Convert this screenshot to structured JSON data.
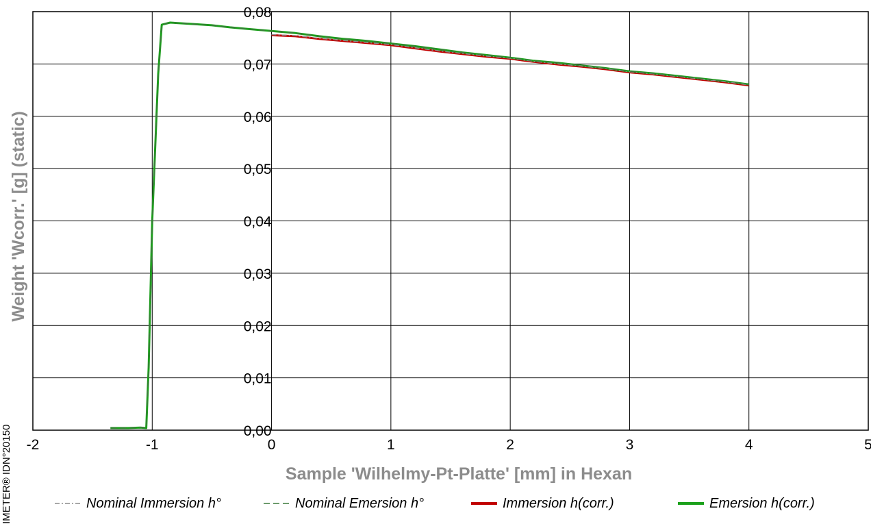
{
  "chart_data": {
    "type": "line",
    "title": "",
    "xlabel": "Sample 'Wilhelmy-Pt-Platte' [mm] in Hexan",
    "ylabel": "Weight 'Wcorr.' [g]  (static)",
    "side_note": "IMETER® IDN°20150",
    "xlim": [
      -2,
      5
    ],
    "ylim": [
      0,
      0.08
    ],
    "x_ticks": [
      -2,
      -1,
      0,
      1,
      2,
      3,
      4,
      5
    ],
    "x_tick_labels": [
      "-2",
      "-1",
      "0",
      "1",
      "2",
      "3",
      "4",
      "5"
    ],
    "y_ticks": [
      0,
      0.01,
      0.02,
      0.03,
      0.04,
      0.05,
      0.06,
      0.07,
      0.08
    ],
    "y_tick_labels": [
      "0,00",
      "0,01",
      "0,02",
      "0,03",
      "0,04",
      "0,05",
      "0,06",
      "0,07",
      "0,08"
    ],
    "grid": true,
    "legend_position": "bottom",
    "series": [
      {
        "name": "Nominal Immersion h°",
        "color": "#8c8c8c",
        "style": "dash-dot",
        "x": [
          0,
          0.2,
          0.4,
          0.6,
          0.8,
          1.0,
          1.2,
          1.4,
          1.6,
          1.8,
          2.0,
          2.2,
          2.4,
          2.6,
          2.8,
          3.0,
          3.2,
          3.4,
          3.6,
          3.8,
          4.0
        ],
        "y": [
          0.0756,
          0.0754,
          0.0749,
          0.0745,
          0.0741,
          0.0737,
          0.0731,
          0.0725,
          0.072,
          0.0715,
          0.0711,
          0.0705,
          0.07,
          0.0696,
          0.0691,
          0.0685,
          0.0681,
          0.0676,
          0.0671,
          0.0666,
          0.066
        ]
      },
      {
        "name": "Nominal Emersion h°",
        "color": "#3c7a3c",
        "style": "dash",
        "x": [
          -1.35,
          -1.3,
          -1.2,
          -1.1,
          -1.05,
          -1.03,
          -1.0,
          -0.95,
          -0.92,
          -0.85,
          -0.7,
          -0.5,
          -0.35,
          -0.2,
          0,
          0.2,
          0.4,
          0.6,
          0.8,
          1.0,
          1.2,
          1.4,
          1.6,
          1.8,
          2.0,
          2.2,
          2.4,
          2.6,
          2.8,
          3.0,
          3.2,
          3.4,
          3.6,
          3.8,
          4.0
        ],
        "y": [
          0.0004,
          0.0004,
          0.0004,
          0.0005,
          0.0004,
          0.012,
          0.04,
          0.068,
          0.0775,
          0.0779,
          0.0777,
          0.0774,
          0.077,
          0.0767,
          0.0763,
          0.0759,
          0.0753,
          0.0748,
          0.0744,
          0.0739,
          0.0734,
          0.0728,
          0.0722,
          0.0717,
          0.0712,
          0.0706,
          0.0702,
          0.0697,
          0.0692,
          0.0686,
          0.0682,
          0.0677,
          0.0672,
          0.0667,
          0.0661
        ]
      },
      {
        "name": "Immersion h(corr.)",
        "color": "#c00000",
        "style": "solid",
        "x": [
          0,
          0.2,
          0.4,
          0.6,
          0.8,
          1.0,
          1.2,
          1.4,
          1.6,
          1.8,
          2.0,
          2.2,
          2.4,
          2.6,
          2.8,
          3.0,
          3.2,
          3.4,
          3.6,
          3.8,
          4.0
        ],
        "y": [
          0.0755,
          0.0753,
          0.0748,
          0.0744,
          0.074,
          0.0736,
          0.073,
          0.0724,
          0.0719,
          0.0714,
          0.071,
          0.0704,
          0.0699,
          0.0695,
          0.069,
          0.0684,
          0.068,
          0.0675,
          0.067,
          0.0665,
          0.0659
        ]
      },
      {
        "name": "Emersion h(corr.)",
        "color": "#1aa01a",
        "style": "solid",
        "x": [
          -1.35,
          -1.3,
          -1.2,
          -1.1,
          -1.05,
          -1.03,
          -1.0,
          -0.95,
          -0.92,
          -0.85,
          -0.7,
          -0.5,
          -0.35,
          -0.2,
          0,
          0.2,
          0.4,
          0.6,
          0.8,
          1.0,
          1.2,
          1.4,
          1.6,
          1.8,
          2.0,
          2.2,
          2.4,
          2.6,
          2.8,
          3.0,
          3.2,
          3.4,
          3.6,
          3.8,
          4.0
        ],
        "y": [
          0.0004,
          0.0004,
          0.0004,
          0.0005,
          0.0004,
          0.012,
          0.04,
          0.068,
          0.0775,
          0.0779,
          0.0777,
          0.0774,
          0.077,
          0.0767,
          0.0763,
          0.0759,
          0.0753,
          0.0748,
          0.0744,
          0.0739,
          0.0734,
          0.0728,
          0.0722,
          0.0717,
          0.0712,
          0.0706,
          0.0702,
          0.0697,
          0.0692,
          0.0686,
          0.0682,
          0.0677,
          0.0672,
          0.0667,
          0.0661
        ]
      }
    ]
  }
}
